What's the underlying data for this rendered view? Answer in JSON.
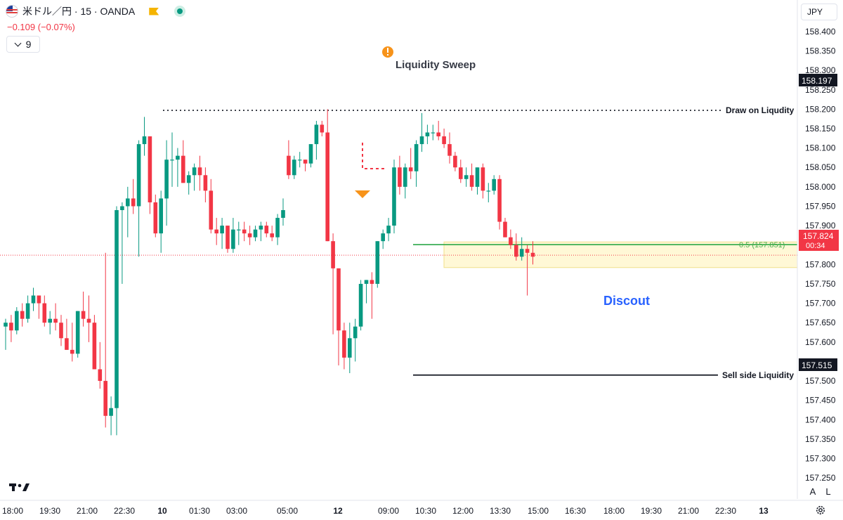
{
  "header": {
    "symbol_title": "米ドル／円 · 15 · OANDA",
    "change_text": "−0.109 (−0.07%)",
    "indicator_count": "9",
    "currency_button": "JPY",
    "auto_scale_label": "A",
    "log_scale_label": "L"
  },
  "icons": {
    "flag": "us-flag-icon",
    "tag": "tag-icon",
    "status": "market-status-dot-icon",
    "collapse": "chevron-down-icon",
    "logo": "tradingview-logo-icon",
    "settings": "gear-icon",
    "alert": "exclamation-alert-icon",
    "marker": "down-triangle-marker-icon"
  },
  "colors": {
    "up": "#089981",
    "down": "#f23645",
    "zone_fill": "#fff8d6",
    "zone_border": "#f0e08a",
    "fib_line": "#1aa13a",
    "price_tag": "#f23645",
    "accent_text": "#2962ff",
    "alert": "#f7931a"
  },
  "chart_data": {
    "type": "candlestick",
    "y_axis": {
      "ylim": [
        157.196,
        158.436
      ],
      "ticks": [
        "158.400",
        "158.350",
        "158.300",
        "158.250",
        "158.200",
        "158.150",
        "158.100",
        "158.050",
        "158.000",
        "157.950",
        "157.900",
        "157.850",
        "157.800",
        "157.750",
        "157.700",
        "157.650",
        "157.600",
        "157.550",
        "157.500",
        "157.450",
        "157.400",
        "157.350",
        "157.300",
        "157.250"
      ]
    },
    "x_axis": {
      "ticks": [
        "18:00",
        "19:30",
        "21:00",
        "22:30",
        "10",
        "01:30",
        "03:00",
        "05:00",
        "12",
        "09:00",
        "10:30",
        "12:00",
        "13:30",
        "15:00",
        "16:30",
        "18:00",
        "19:30",
        "21:00",
        "22:30",
        "13"
      ]
    },
    "candles": [
      [
        157.64,
        157.66,
        157.58,
        157.65
      ],
      [
        157.65,
        157.67,
        157.6,
        157.63
      ],
      [
        157.63,
        157.69,
        157.62,
        157.68
      ],
      [
        157.68,
        157.7,
        157.64,
        157.66
      ],
      [
        157.66,
        157.72,
        157.65,
        157.7
      ],
      [
        157.7,
        157.74,
        157.68,
        157.72
      ],
      [
        157.72,
        157.72,
        157.66,
        157.7
      ],
      [
        157.7,
        157.72,
        157.64,
        157.65
      ],
      [
        157.65,
        157.68,
        157.62,
        157.66
      ],
      [
        157.66,
        157.7,
        157.63,
        157.65
      ],
      [
        157.65,
        157.67,
        157.59,
        157.61
      ],
      [
        157.61,
        157.66,
        157.58,
        157.58
      ],
      [
        157.58,
        157.65,
        157.55,
        157.57
      ],
      [
        157.57,
        157.68,
        157.56,
        157.68
      ],
      [
        157.68,
        157.73,
        157.64,
        157.66
      ],
      [
        157.66,
        157.72,
        157.6,
        157.65
      ],
      [
        157.65,
        157.67,
        157.54,
        157.53
      ],
      [
        157.53,
        157.6,
        157.48,
        157.5
      ],
      [
        157.5,
        157.83,
        157.38,
        157.41
      ],
      [
        157.41,
        157.46,
        157.36,
        157.43
      ],
      [
        157.43,
        157.95,
        157.36,
        157.94
      ],
      [
        157.94,
        157.96,
        157.75,
        157.95
      ],
      [
        157.95,
        158.0,
        157.87,
        157.97
      ],
      [
        157.97,
        158.02,
        157.93,
        157.95
      ],
      [
        157.95,
        158.12,
        157.82,
        158.11
      ],
      [
        158.11,
        158.18,
        158.08,
        158.13
      ],
      [
        158.13,
        158.13,
        157.93,
        157.96
      ],
      [
        157.96,
        157.98,
        157.87,
        157.88
      ],
      [
        157.88,
        157.99,
        157.83,
        157.97
      ],
      [
        157.97,
        158.12,
        157.9,
        158.07
      ],
      [
        158.07,
        158.14,
        158.0,
        158.07
      ],
      [
        158.07,
        158.1,
        158.0,
        158.08
      ],
      [
        158.08,
        158.12,
        158.01,
        158.01
      ],
      [
        158.01,
        158.04,
        157.98,
        158.03
      ],
      [
        158.03,
        158.06,
        157.99,
        158.05
      ],
      [
        158.05,
        158.08,
        157.99,
        158.03
      ],
      [
        158.03,
        158.05,
        157.96,
        157.99
      ],
      [
        157.99,
        158.02,
        157.88,
        157.89
      ],
      [
        157.89,
        157.92,
        157.85,
        157.88
      ],
      [
        157.88,
        157.92,
        157.84,
        157.9
      ],
      [
        157.9,
        157.9,
        157.83,
        157.84
      ],
      [
        157.84,
        157.92,
        157.83,
        157.89
      ],
      [
        157.89,
        157.91,
        157.85,
        157.89
      ],
      [
        157.89,
        157.91,
        157.86,
        157.88
      ],
      [
        157.88,
        157.9,
        157.85,
        157.87
      ],
      [
        157.87,
        157.9,
        157.86,
        157.89
      ],
      [
        157.89,
        157.91,
        157.86,
        157.9
      ],
      [
        157.9,
        157.91,
        157.87,
        157.88
      ],
      [
        157.88,
        157.9,
        157.86,
        157.87
      ],
      [
        157.87,
        157.93,
        157.85,
        157.92
      ],
      [
        157.92,
        157.97,
        157.9,
        157.94
      ],
      [
        158.08,
        158.12,
        158.02,
        158.03
      ],
      [
        158.03,
        158.08,
        158.02,
        158.07
      ],
      [
        158.07,
        158.09,
        158.05,
        158.07
      ],
      [
        158.07,
        158.07,
        158.04,
        158.06
      ],
      [
        158.06,
        158.11,
        158.05,
        158.11
      ],
      [
        158.11,
        158.17,
        158.07,
        158.16
      ],
      [
        158.16,
        158.17,
        158.13,
        158.14
      ],
      [
        158.14,
        158.2,
        157.86,
        157.86
      ],
      [
        157.86,
        157.88,
        157.62,
        157.79
      ],
      [
        157.79,
        157.79,
        157.54,
        157.63
      ],
      [
        157.63,
        157.65,
        157.53,
        157.56
      ],
      [
        157.56,
        157.65,
        157.52,
        157.61
      ],
      [
        157.61,
        157.66,
        157.55,
        157.64
      ],
      [
        157.64,
        157.76,
        157.63,
        157.75
      ],
      [
        157.75,
        157.76,
        157.7,
        157.76
      ],
      [
        157.76,
        157.78,
        157.66,
        157.75
      ],
      [
        157.75,
        157.86,
        157.74,
        157.86
      ],
      [
        157.86,
        157.89,
        157.84,
        157.88
      ],
      [
        157.88,
        157.92,
        157.86,
        157.9
      ],
      [
        157.9,
        158.07,
        157.88,
        158.05
      ],
      [
        158.05,
        158.08,
        157.98,
        158.0
      ],
      [
        158.0,
        158.06,
        157.97,
        158.05
      ],
      [
        158.05,
        158.1,
        158.02,
        158.04
      ],
      [
        158.04,
        158.12,
        158.0,
        158.11
      ],
      [
        158.11,
        158.19,
        158.09,
        158.13
      ],
      [
        158.13,
        158.16,
        158.11,
        158.14
      ],
      [
        158.14,
        158.16,
        158.12,
        158.14
      ],
      [
        158.14,
        158.17,
        158.12,
        158.13
      ],
      [
        158.13,
        158.15,
        158.1,
        158.11
      ],
      [
        158.11,
        158.14,
        158.06,
        158.08
      ],
      [
        158.08,
        158.09,
        158.04,
        158.05
      ],
      [
        158.05,
        158.07,
        158.01,
        158.02
      ],
      [
        158.02,
        158.05,
        158.0,
        158.03
      ],
      [
        158.03,
        158.06,
        157.99,
        158.0
      ],
      [
        158.0,
        158.05,
        157.98,
        158.05
      ],
      [
        158.05,
        158.06,
        157.97,
        157.99
      ],
      [
        157.99,
        158.01,
        157.96,
        157.99
      ],
      [
        157.99,
        158.03,
        157.98,
        158.02
      ],
      [
        158.02,
        158.03,
        157.89,
        157.91
      ],
      [
        157.91,
        157.92,
        157.87,
        157.87
      ],
      [
        157.87,
        157.89,
        157.84,
        157.85
      ],
      [
        157.85,
        157.88,
        157.81,
        157.82
      ],
      [
        157.82,
        157.87,
        157.81,
        157.84
      ],
      [
        157.84,
        157.85,
        157.72,
        157.83
      ],
      [
        157.83,
        157.86,
        157.8,
        157.82
      ]
    ],
    "annotations": {
      "liquidity_sweep_label": "Liquidity Sweep",
      "draw_on_liquidity_label": "Draw on Liqudity",
      "draw_on_liquidity_price": 158.197,
      "draw_on_liquidity_price_text": "158.197",
      "sell_side_label": "Sell side Liquidity",
      "sell_side_price": 157.515,
      "sell_side_price_text": "157.515",
      "fib_label": "0.5 (157.851)",
      "fib_price": 157.851,
      "zone_top": 157.858,
      "zone_bottom": 157.792,
      "zone_label": "Discout",
      "current_price": 157.824,
      "current_price_text": "157.824",
      "countdown_text": "00:34"
    }
  }
}
